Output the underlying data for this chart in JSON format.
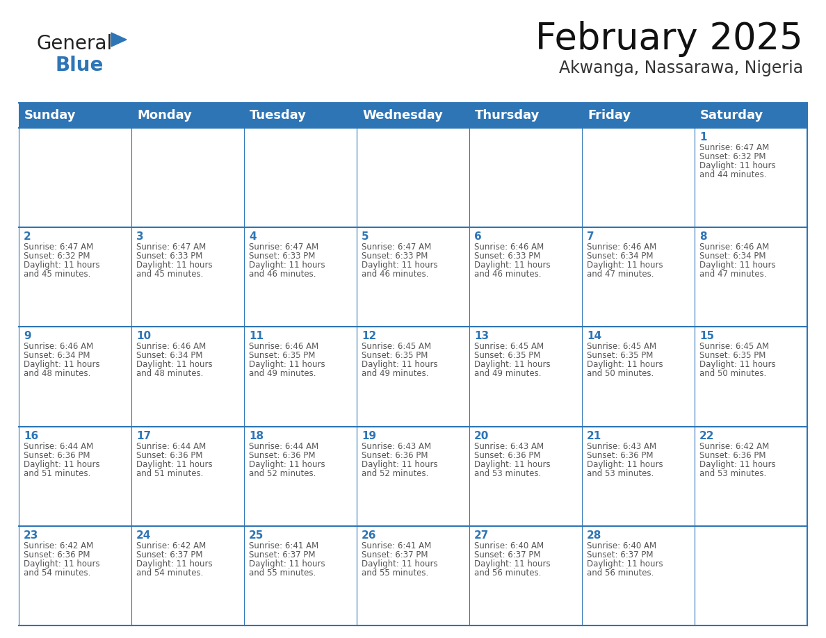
{
  "title": "February 2025",
  "subtitle": "Akwanga, Nassarawa, Nigeria",
  "header_bg": "#2E75B6",
  "header_text_color": "#FFFFFF",
  "cell_border_color": "#2E75B6",
  "day_number_color": "#2E75B6",
  "info_text_color": "#555555",
  "background_color": "#FFFFFF",
  "cell_bg_even": "#FFFFFF",
  "cell_bg_odd": "#F5F5F5",
  "days_of_week": [
    "Sunday",
    "Monday",
    "Tuesday",
    "Wednesday",
    "Thursday",
    "Friday",
    "Saturday"
  ],
  "weeks": [
    [
      {
        "day": "",
        "info": ""
      },
      {
        "day": "",
        "info": ""
      },
      {
        "day": "",
        "info": ""
      },
      {
        "day": "",
        "info": ""
      },
      {
        "day": "",
        "info": ""
      },
      {
        "day": "",
        "info": ""
      },
      {
        "day": "1",
        "info": "Sunrise: 6:47 AM\nSunset: 6:32 PM\nDaylight: 11 hours\nand 44 minutes."
      }
    ],
    [
      {
        "day": "2",
        "info": "Sunrise: 6:47 AM\nSunset: 6:32 PM\nDaylight: 11 hours\nand 45 minutes."
      },
      {
        "day": "3",
        "info": "Sunrise: 6:47 AM\nSunset: 6:33 PM\nDaylight: 11 hours\nand 45 minutes."
      },
      {
        "day": "4",
        "info": "Sunrise: 6:47 AM\nSunset: 6:33 PM\nDaylight: 11 hours\nand 46 minutes."
      },
      {
        "day": "5",
        "info": "Sunrise: 6:47 AM\nSunset: 6:33 PM\nDaylight: 11 hours\nand 46 minutes."
      },
      {
        "day": "6",
        "info": "Sunrise: 6:46 AM\nSunset: 6:33 PM\nDaylight: 11 hours\nand 46 minutes."
      },
      {
        "day": "7",
        "info": "Sunrise: 6:46 AM\nSunset: 6:34 PM\nDaylight: 11 hours\nand 47 minutes."
      },
      {
        "day": "8",
        "info": "Sunrise: 6:46 AM\nSunset: 6:34 PM\nDaylight: 11 hours\nand 47 minutes."
      }
    ],
    [
      {
        "day": "9",
        "info": "Sunrise: 6:46 AM\nSunset: 6:34 PM\nDaylight: 11 hours\nand 48 minutes."
      },
      {
        "day": "10",
        "info": "Sunrise: 6:46 AM\nSunset: 6:34 PM\nDaylight: 11 hours\nand 48 minutes."
      },
      {
        "day": "11",
        "info": "Sunrise: 6:46 AM\nSunset: 6:35 PM\nDaylight: 11 hours\nand 49 minutes."
      },
      {
        "day": "12",
        "info": "Sunrise: 6:45 AM\nSunset: 6:35 PM\nDaylight: 11 hours\nand 49 minutes."
      },
      {
        "day": "13",
        "info": "Sunrise: 6:45 AM\nSunset: 6:35 PM\nDaylight: 11 hours\nand 49 minutes."
      },
      {
        "day": "14",
        "info": "Sunrise: 6:45 AM\nSunset: 6:35 PM\nDaylight: 11 hours\nand 50 minutes."
      },
      {
        "day": "15",
        "info": "Sunrise: 6:45 AM\nSunset: 6:35 PM\nDaylight: 11 hours\nand 50 minutes."
      }
    ],
    [
      {
        "day": "16",
        "info": "Sunrise: 6:44 AM\nSunset: 6:36 PM\nDaylight: 11 hours\nand 51 minutes."
      },
      {
        "day": "17",
        "info": "Sunrise: 6:44 AM\nSunset: 6:36 PM\nDaylight: 11 hours\nand 51 minutes."
      },
      {
        "day": "18",
        "info": "Sunrise: 6:44 AM\nSunset: 6:36 PM\nDaylight: 11 hours\nand 52 minutes."
      },
      {
        "day": "19",
        "info": "Sunrise: 6:43 AM\nSunset: 6:36 PM\nDaylight: 11 hours\nand 52 minutes."
      },
      {
        "day": "20",
        "info": "Sunrise: 6:43 AM\nSunset: 6:36 PM\nDaylight: 11 hours\nand 53 minutes."
      },
      {
        "day": "21",
        "info": "Sunrise: 6:43 AM\nSunset: 6:36 PM\nDaylight: 11 hours\nand 53 minutes."
      },
      {
        "day": "22",
        "info": "Sunrise: 6:42 AM\nSunset: 6:36 PM\nDaylight: 11 hours\nand 53 minutes."
      }
    ],
    [
      {
        "day": "23",
        "info": "Sunrise: 6:42 AM\nSunset: 6:36 PM\nDaylight: 11 hours\nand 54 minutes."
      },
      {
        "day": "24",
        "info": "Sunrise: 6:42 AM\nSunset: 6:37 PM\nDaylight: 11 hours\nand 54 minutes."
      },
      {
        "day": "25",
        "info": "Sunrise: 6:41 AM\nSunset: 6:37 PM\nDaylight: 11 hours\nand 55 minutes."
      },
      {
        "day": "26",
        "info": "Sunrise: 6:41 AM\nSunset: 6:37 PM\nDaylight: 11 hours\nand 55 minutes."
      },
      {
        "day": "27",
        "info": "Sunrise: 6:40 AM\nSunset: 6:37 PM\nDaylight: 11 hours\nand 56 minutes."
      },
      {
        "day": "28",
        "info": "Sunrise: 6:40 AM\nSunset: 6:37 PM\nDaylight: 11 hours\nand 56 minutes."
      },
      {
        "day": "",
        "info": ""
      }
    ]
  ],
  "logo_text1": "General",
  "logo_text2": "Blue",
  "logo_color1": "#222222",
  "logo_color2": "#2E75B6",
  "title_fontsize": 38,
  "subtitle_fontsize": 17,
  "header_fontsize": 13,
  "day_num_fontsize": 11,
  "info_fontsize": 8.5
}
